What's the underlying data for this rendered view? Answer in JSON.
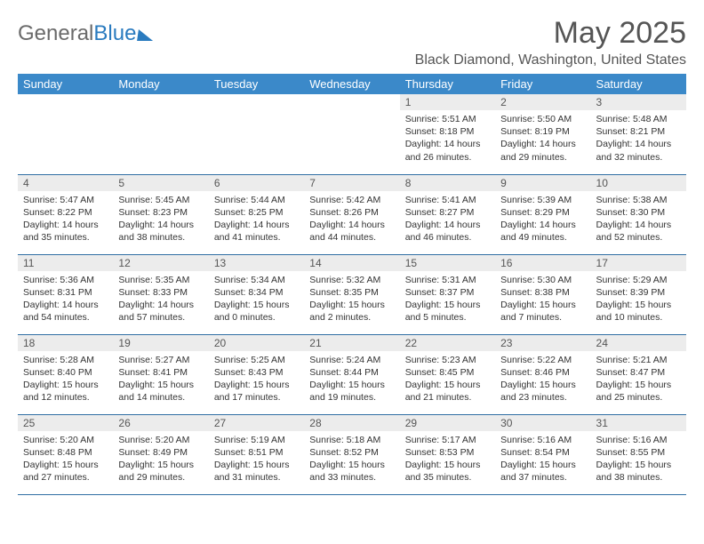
{
  "colors": {
    "header_bg": "#3b89c9",
    "header_text": "#ffffff",
    "daynum_bg": "#ececec",
    "row_border": "#2f6da3",
    "logo_gray": "#6a6a6a",
    "logo_blue": "#2a7bbf",
    "body_text": "#333333",
    "title_text": "#555555"
  },
  "logo": {
    "part1": "General",
    "part2": "Blue"
  },
  "title": "May 2025",
  "location": "Black Diamond, Washington, United States",
  "day_headers": [
    "Sunday",
    "Monday",
    "Tuesday",
    "Wednesday",
    "Thursday",
    "Friday",
    "Saturday"
  ],
  "weeks": [
    [
      {
        "empty": true
      },
      {
        "empty": true
      },
      {
        "empty": true
      },
      {
        "empty": true
      },
      {
        "n": "1",
        "sr": "Sunrise: 5:51 AM",
        "ss": "Sunset: 8:18 PM",
        "dl": "Daylight: 14 hours and 26 minutes."
      },
      {
        "n": "2",
        "sr": "Sunrise: 5:50 AM",
        "ss": "Sunset: 8:19 PM",
        "dl": "Daylight: 14 hours and 29 minutes."
      },
      {
        "n": "3",
        "sr": "Sunrise: 5:48 AM",
        "ss": "Sunset: 8:21 PM",
        "dl": "Daylight: 14 hours and 32 minutes."
      }
    ],
    [
      {
        "n": "4",
        "sr": "Sunrise: 5:47 AM",
        "ss": "Sunset: 8:22 PM",
        "dl": "Daylight: 14 hours and 35 minutes."
      },
      {
        "n": "5",
        "sr": "Sunrise: 5:45 AM",
        "ss": "Sunset: 8:23 PM",
        "dl": "Daylight: 14 hours and 38 minutes."
      },
      {
        "n": "6",
        "sr": "Sunrise: 5:44 AM",
        "ss": "Sunset: 8:25 PM",
        "dl": "Daylight: 14 hours and 41 minutes."
      },
      {
        "n": "7",
        "sr": "Sunrise: 5:42 AM",
        "ss": "Sunset: 8:26 PM",
        "dl": "Daylight: 14 hours and 44 minutes."
      },
      {
        "n": "8",
        "sr": "Sunrise: 5:41 AM",
        "ss": "Sunset: 8:27 PM",
        "dl": "Daylight: 14 hours and 46 minutes."
      },
      {
        "n": "9",
        "sr": "Sunrise: 5:39 AM",
        "ss": "Sunset: 8:29 PM",
        "dl": "Daylight: 14 hours and 49 minutes."
      },
      {
        "n": "10",
        "sr": "Sunrise: 5:38 AM",
        "ss": "Sunset: 8:30 PM",
        "dl": "Daylight: 14 hours and 52 minutes."
      }
    ],
    [
      {
        "n": "11",
        "sr": "Sunrise: 5:36 AM",
        "ss": "Sunset: 8:31 PM",
        "dl": "Daylight: 14 hours and 54 minutes."
      },
      {
        "n": "12",
        "sr": "Sunrise: 5:35 AM",
        "ss": "Sunset: 8:33 PM",
        "dl": "Daylight: 14 hours and 57 minutes."
      },
      {
        "n": "13",
        "sr": "Sunrise: 5:34 AM",
        "ss": "Sunset: 8:34 PM",
        "dl": "Daylight: 15 hours and 0 minutes."
      },
      {
        "n": "14",
        "sr": "Sunrise: 5:32 AM",
        "ss": "Sunset: 8:35 PM",
        "dl": "Daylight: 15 hours and 2 minutes."
      },
      {
        "n": "15",
        "sr": "Sunrise: 5:31 AM",
        "ss": "Sunset: 8:37 PM",
        "dl": "Daylight: 15 hours and 5 minutes."
      },
      {
        "n": "16",
        "sr": "Sunrise: 5:30 AM",
        "ss": "Sunset: 8:38 PM",
        "dl": "Daylight: 15 hours and 7 minutes."
      },
      {
        "n": "17",
        "sr": "Sunrise: 5:29 AM",
        "ss": "Sunset: 8:39 PM",
        "dl": "Daylight: 15 hours and 10 minutes."
      }
    ],
    [
      {
        "n": "18",
        "sr": "Sunrise: 5:28 AM",
        "ss": "Sunset: 8:40 PM",
        "dl": "Daylight: 15 hours and 12 minutes."
      },
      {
        "n": "19",
        "sr": "Sunrise: 5:27 AM",
        "ss": "Sunset: 8:41 PM",
        "dl": "Daylight: 15 hours and 14 minutes."
      },
      {
        "n": "20",
        "sr": "Sunrise: 5:25 AM",
        "ss": "Sunset: 8:43 PM",
        "dl": "Daylight: 15 hours and 17 minutes."
      },
      {
        "n": "21",
        "sr": "Sunrise: 5:24 AM",
        "ss": "Sunset: 8:44 PM",
        "dl": "Daylight: 15 hours and 19 minutes."
      },
      {
        "n": "22",
        "sr": "Sunrise: 5:23 AM",
        "ss": "Sunset: 8:45 PM",
        "dl": "Daylight: 15 hours and 21 minutes."
      },
      {
        "n": "23",
        "sr": "Sunrise: 5:22 AM",
        "ss": "Sunset: 8:46 PM",
        "dl": "Daylight: 15 hours and 23 minutes."
      },
      {
        "n": "24",
        "sr": "Sunrise: 5:21 AM",
        "ss": "Sunset: 8:47 PM",
        "dl": "Daylight: 15 hours and 25 minutes."
      }
    ],
    [
      {
        "n": "25",
        "sr": "Sunrise: 5:20 AM",
        "ss": "Sunset: 8:48 PM",
        "dl": "Daylight: 15 hours and 27 minutes."
      },
      {
        "n": "26",
        "sr": "Sunrise: 5:20 AM",
        "ss": "Sunset: 8:49 PM",
        "dl": "Daylight: 15 hours and 29 minutes."
      },
      {
        "n": "27",
        "sr": "Sunrise: 5:19 AM",
        "ss": "Sunset: 8:51 PM",
        "dl": "Daylight: 15 hours and 31 minutes."
      },
      {
        "n": "28",
        "sr": "Sunrise: 5:18 AM",
        "ss": "Sunset: 8:52 PM",
        "dl": "Daylight: 15 hours and 33 minutes."
      },
      {
        "n": "29",
        "sr": "Sunrise: 5:17 AM",
        "ss": "Sunset: 8:53 PM",
        "dl": "Daylight: 15 hours and 35 minutes."
      },
      {
        "n": "30",
        "sr": "Sunrise: 5:16 AM",
        "ss": "Sunset: 8:54 PM",
        "dl": "Daylight: 15 hours and 37 minutes."
      },
      {
        "n": "31",
        "sr": "Sunrise: 5:16 AM",
        "ss": "Sunset: 8:55 PM",
        "dl": "Daylight: 15 hours and 38 minutes."
      }
    ]
  ]
}
